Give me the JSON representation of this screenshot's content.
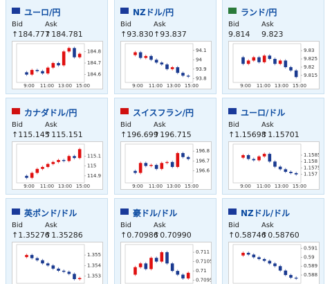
{
  "labels": {
    "bid": "Bid",
    "ask": "Ask"
  },
  "chart_xticks": [
    "9:00",
    "11:00",
    "13:00",
    "15:00"
  ],
  "tiles": [
    {
      "name": "ユーロ/円",
      "bid": "↑184.777",
      "ask": "↑184.781",
      "chart": {
        "ylim": [
          184.55,
          184.85
        ],
        "yticks": [
          184.8,
          184.7,
          184.6
        ],
        "closes": [
          184.62,
          184.6,
          184.64,
          184.63,
          184.61,
          184.66,
          184.7,
          184.68,
          184.8,
          184.83,
          184.75,
          184.78
        ]
      }
    },
    {
      "name": "NZドル/円",
      "bid": "↑93.830",
      "ask": "↑93.837",
      "chart": {
        "ylim": [
          93.78,
          94.15
        ],
        "yticks": [
          94.1,
          94,
          93.9,
          93.8
        ],
        "closes": [
          94.05,
          94.08,
          94.02,
          94.04,
          94.0,
          93.97,
          93.95,
          93.9,
          93.92,
          93.86,
          93.83,
          93.82
        ]
      }
    },
    {
      "name": "ランド/円",
      "bid": "9.814",
      "ask": "9.823",
      "chart": {
        "ylim": [
          9.812,
          9.833
        ],
        "yticks": [
          9.83,
          9.825,
          9.82,
          9.815
        ],
        "closes": [
          9.826,
          9.822,
          9.824,
          9.826,
          9.823,
          9.827,
          9.825,
          9.822,
          9.824,
          9.82,
          9.818,
          9.814
        ]
      }
    },
    {
      "name": "カナダドル/円",
      "bid": "↑115.145",
      "ask": "↑115.151",
      "chart": {
        "ylim": [
          114.85,
          115.2
        ],
        "yticks": [
          115.1,
          115,
          114.9
        ],
        "closes": [
          114.9,
          114.88,
          114.93,
          114.97,
          114.99,
          115.02,
          115.04,
          115.06,
          115.05,
          115.1,
          115.08,
          115.17
        ]
      }
    },
    {
      "name": "スイスフラン/円",
      "bid": "↑196.699",
      "ask": "↑196.715",
      "chart": {
        "ylim": [
          196.5,
          196.85
        ],
        "yticks": [
          196.8,
          196.7,
          196.6
        ],
        "closes": [
          196.6,
          196.58,
          196.68,
          196.65,
          196.66,
          196.62,
          196.68,
          196.69,
          196.64,
          196.78,
          196.74,
          196.72
        ]
      }
    },
    {
      "name": "ユーロ/ドル",
      "bid": "↑1.15698",
      "ask": "↑1.15701",
      "chart": {
        "ylim": [
          1.1565,
          1.1592
        ],
        "yticks": [
          1.1585,
          1.158,
          1.1575,
          1.157
        ],
        "closes": [
          1.1583,
          1.1585,
          1.1582,
          1.1581,
          1.1584,
          1.1586,
          1.158,
          1.1576,
          1.1574,
          1.1572,
          1.1571,
          1.157
        ]
      }
    },
    {
      "name": "英ポンド/ドル",
      "bid": "↑1.35276",
      "ask": "↑1.35286",
      "chart": {
        "ylim": [
          1.3525,
          1.3558
        ],
        "yticks": [
          1.355,
          1.354,
          1.353
        ],
        "closes": [
          1.3548,
          1.355,
          1.3547,
          1.3545,
          1.3542,
          1.354,
          1.3537,
          1.3535,
          1.3534,
          1.3532,
          1.3527,
          1.3528
        ]
      }
    },
    {
      "name": "豪ドル/ドル",
      "bid": "↑0.70986",
      "ask": "↑0.70990",
      "chart": {
        "ylim": [
          0.70945,
          0.7113
        ],
        "yticks": [
          0.711,
          0.7105,
          0.71,
          0.7095
        ],
        "closes": [
          0.7098,
          0.7102,
          0.7104,
          0.7101,
          0.7107,
          0.7105,
          0.711,
          0.7104,
          0.71,
          0.7098,
          0.7096,
          0.7099
        ]
      }
    },
    {
      "name": "NZドル/ドル",
      "bid": "↑0.58746",
      "ask": "↑0.58760",
      "chart": {
        "ylim": [
          0.5873,
          0.5912
        ],
        "yticks": [
          0.591,
          0.59,
          0.589,
          0.588
        ],
        "closes": [
          0.5902,
          0.5905,
          0.5903,
          0.59,
          0.5898,
          0.5896,
          0.5893,
          0.589,
          0.5885,
          0.588,
          0.5877,
          0.5876
        ]
      }
    }
  ]
}
